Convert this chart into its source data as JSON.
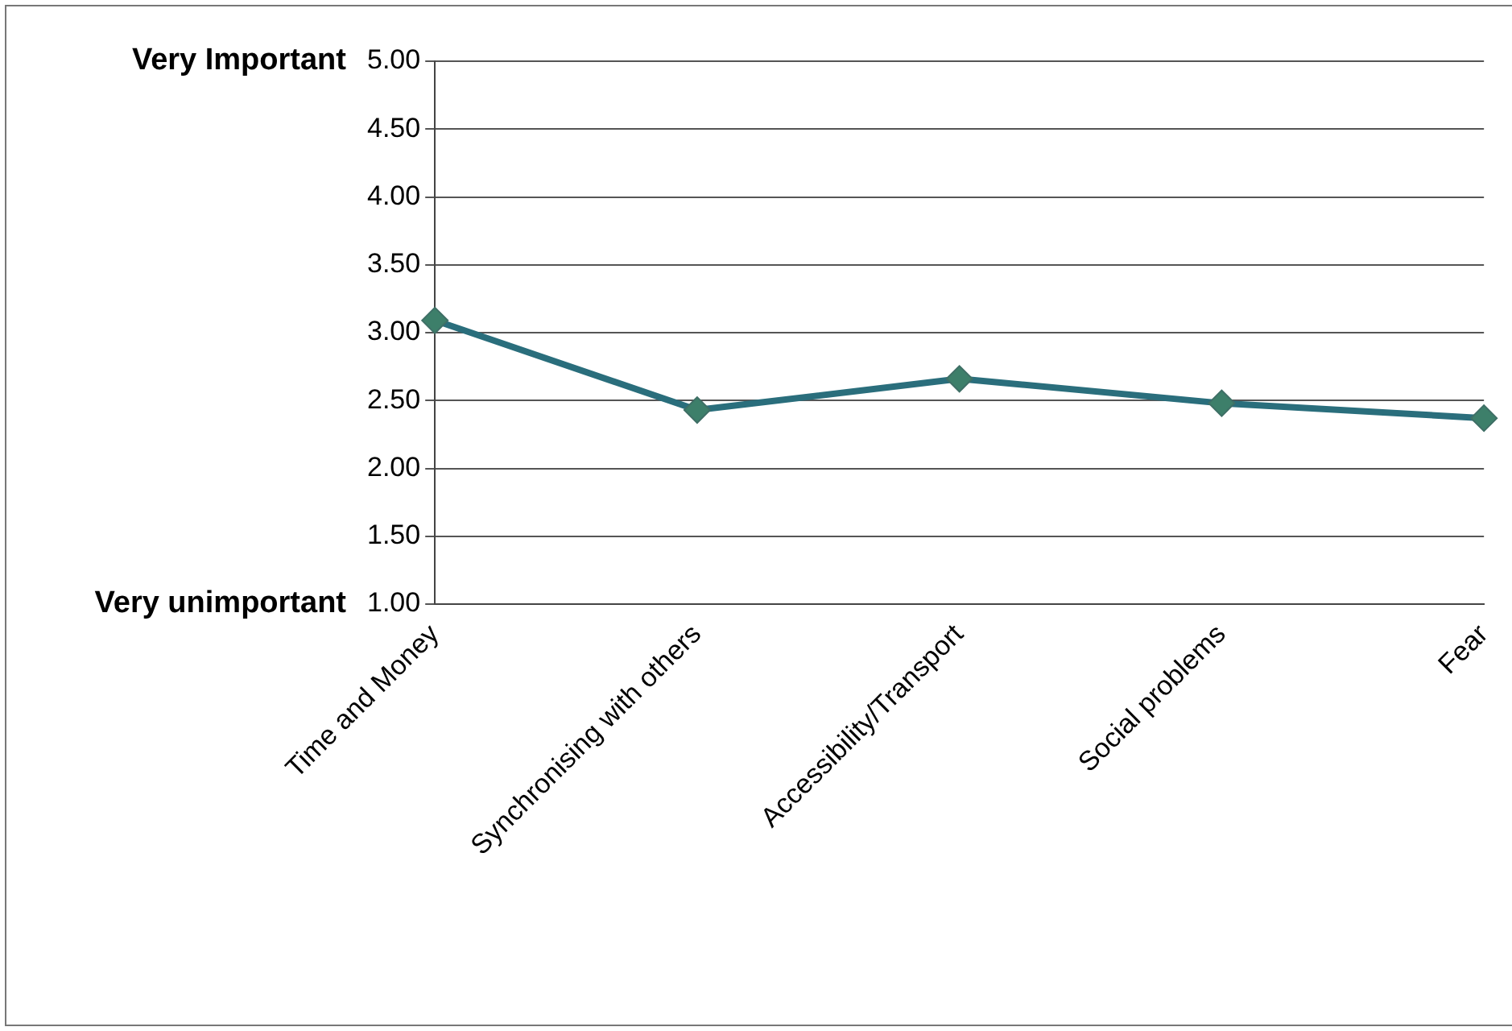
{
  "chart_data": {
    "type": "line",
    "categories": [
      "Time and Money",
      "Synchronising with others",
      "Accessibility/Transport",
      "Social problems",
      "Fear"
    ],
    "series": [
      {
        "color": "#2a6e7c",
        "values": [
          3.09,
          2.43,
          2.66,
          2.48,
          2.37
        ]
      }
    ],
    "ylim": [
      1,
      5
    ],
    "yticks": [
      {
        "value": 1,
        "label": "1.00"
      },
      {
        "value": 1.5,
        "label": "1.50"
      },
      {
        "value": 2,
        "label": "2.00"
      },
      {
        "value": 2.5,
        "label": "2.50"
      },
      {
        "value": 3,
        "label": "3.00"
      },
      {
        "value": 3.5,
        "label": "3.50"
      },
      {
        "value": 4,
        "label": "4.00"
      },
      {
        "value": 4.5,
        "label": "4.50"
      },
      {
        "value": 5,
        "label": "5.00"
      }
    ],
    "grid": "y",
    "legend": false,
    "marker": "diamond",
    "line_style": "solid",
    "annotations": [
      "Very Important",
      "Very unimportant"
    ]
  }
}
